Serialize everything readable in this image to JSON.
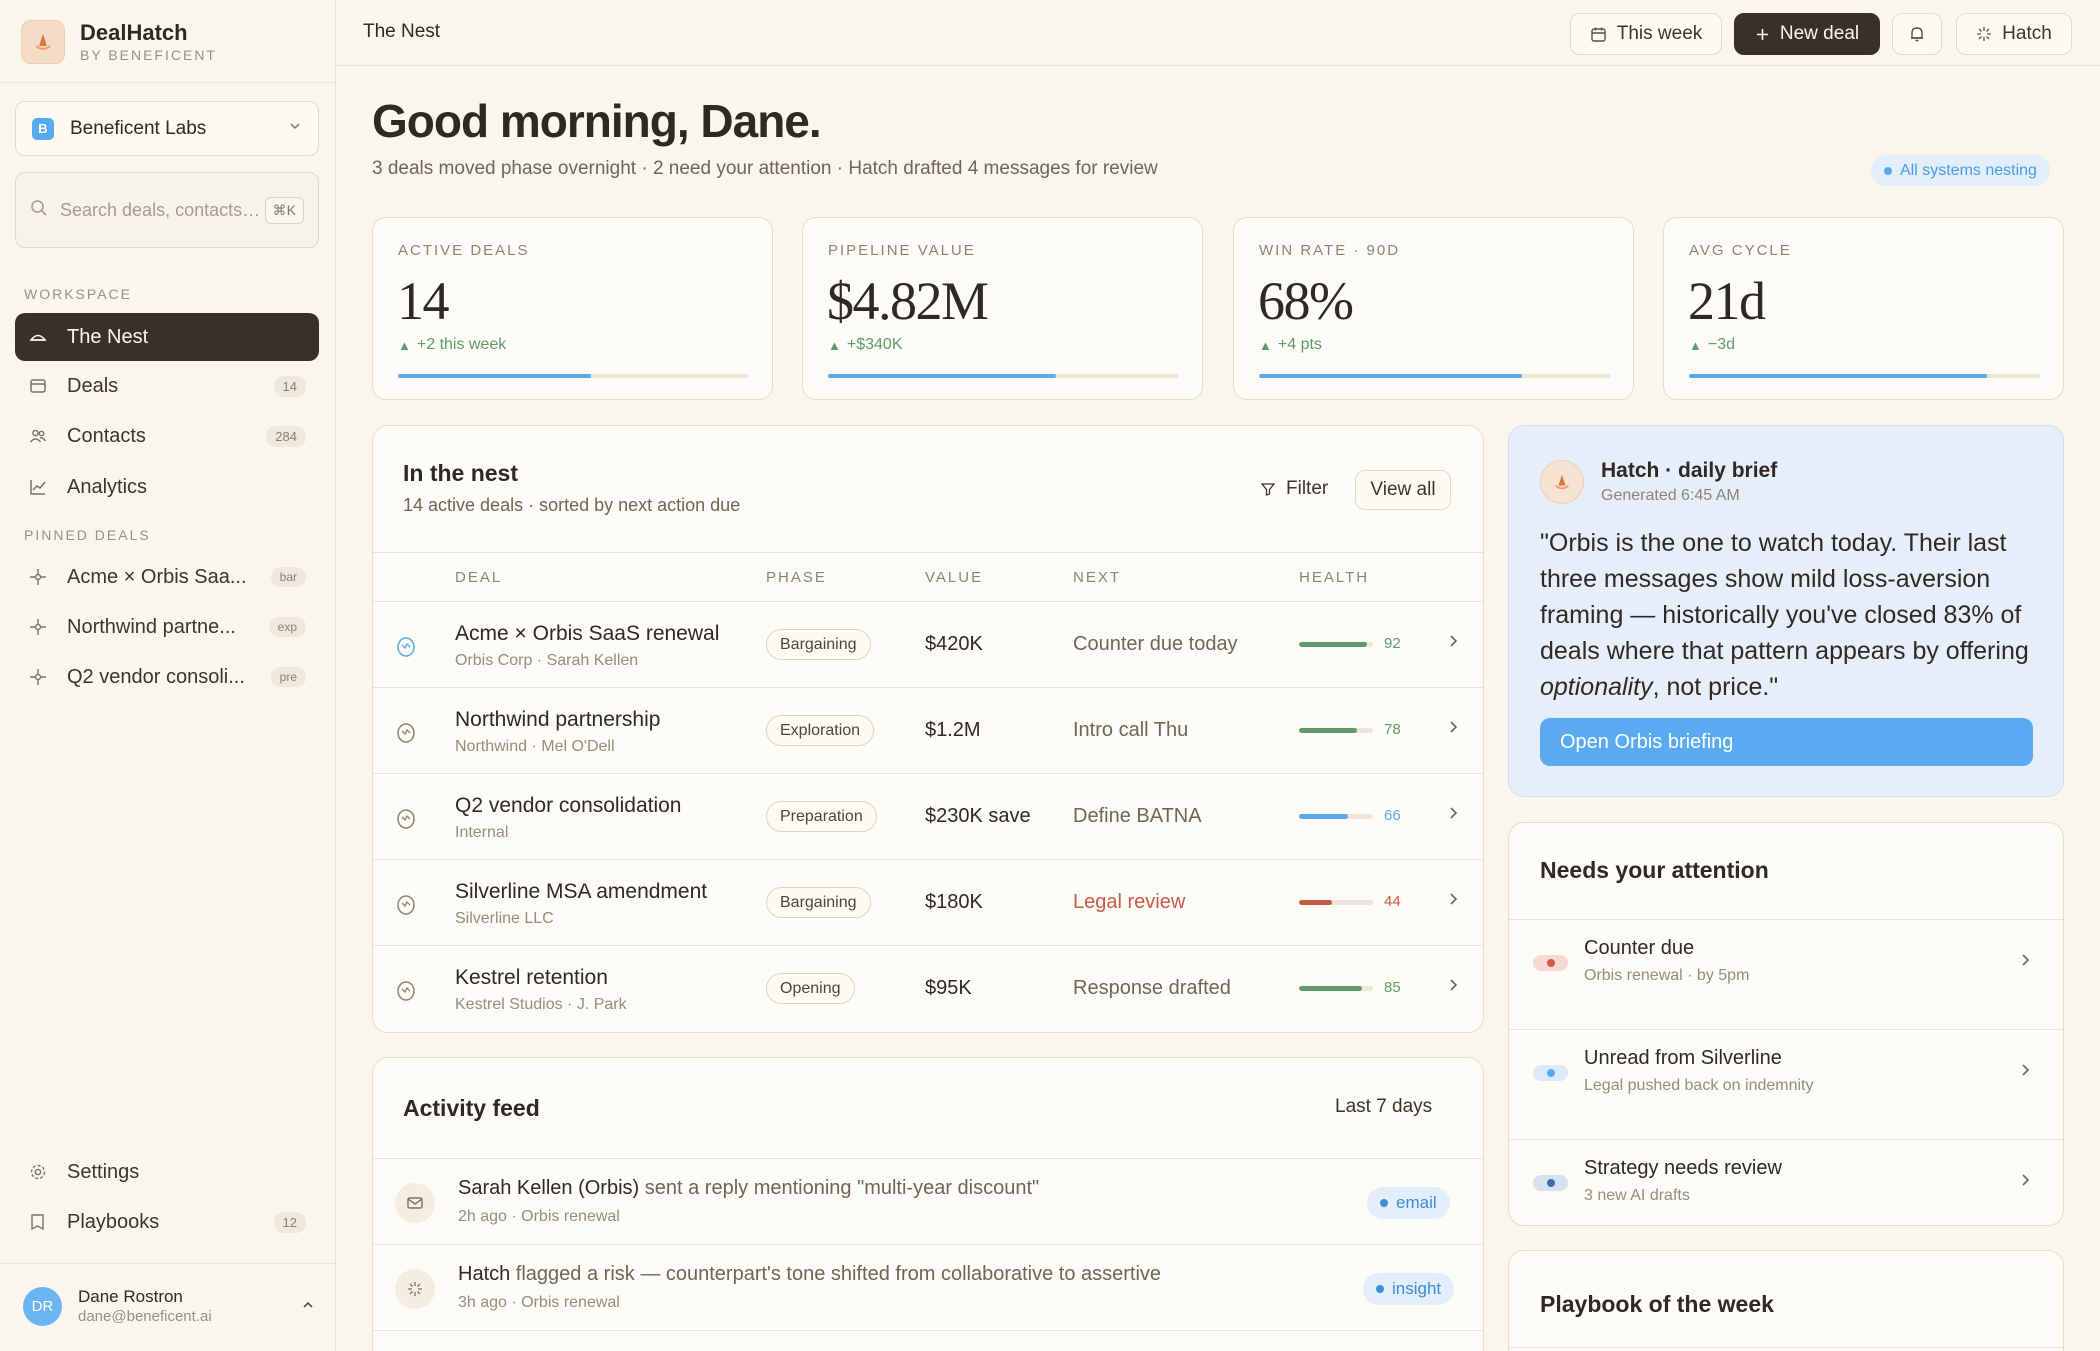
{
  "brand": {
    "name": "DealHatch",
    "sub": "BY BENEFICENT"
  },
  "org": {
    "badge": "B",
    "name": "Beneficent Labs"
  },
  "search": {
    "placeholder": "Search deals, contacts…",
    "shortcut": "⌘K"
  },
  "sidebar": {
    "workspace_label": "WORKSPACE",
    "items": [
      {
        "label": "The Nest",
        "icon": "nest-icon",
        "count": ""
      },
      {
        "label": "Deals",
        "icon": "deals-icon",
        "count": "14"
      },
      {
        "label": "Contacts",
        "icon": "contacts-icon",
        "count": "284"
      },
      {
        "label": "Analytics",
        "icon": "analytics-icon",
        "count": ""
      }
    ],
    "pinned_label": "PINNED DEALS",
    "pinned": [
      {
        "label": "Acme × Orbis Saa...",
        "tag": "bar"
      },
      {
        "label": "Northwind partne...",
        "tag": "exp"
      },
      {
        "label": "Q2 vendor consoli...",
        "tag": "pre"
      }
    ],
    "bottom": [
      {
        "label": "Settings",
        "icon": "gear-icon",
        "count": ""
      },
      {
        "label": "Playbooks",
        "icon": "book-icon",
        "count": "12"
      }
    ]
  },
  "user": {
    "initials": "DR",
    "name": "Dane Rostron",
    "email": "dane@beneficent.ai"
  },
  "topbar": {
    "title": "The Nest",
    "range_label": "This week",
    "new_deal_label": "New deal",
    "hatch_label": "Hatch"
  },
  "greeting": {
    "title": "Good morning, Dane.",
    "subtitle": "3 deals moved phase overnight · 2 need your attention · Hatch drafted 4 messages for review",
    "status": "All systems nesting"
  },
  "kpis": [
    {
      "label": "ACTIVE DEALS",
      "value": "14",
      "delta": "+2 this week",
      "progress": 0.55
    },
    {
      "label": "PIPELINE VALUE",
      "value": "$4.82M",
      "delta": "+$340K",
      "progress": 0.65
    },
    {
      "label": "WIN RATE · 90D",
      "value": "68%",
      "delta": "+4 pts",
      "progress": 0.75
    },
    {
      "label": "AVG CYCLE",
      "value": "21d",
      "delta": "−3d",
      "progress": 0.85
    }
  ],
  "nest": {
    "title": "In the nest",
    "subtitle": "14 active deals · sorted by next action due",
    "filter_label": "Filter",
    "view_all_label": "View all",
    "columns": [
      "DEAL",
      "PHASE",
      "VALUE",
      "NEXT",
      "HEALTH"
    ],
    "rows": [
      {
        "name": "Acme × Orbis SaaS renewal",
        "sub": "Orbis Corp · Sarah Kellen",
        "phase": "Bargaining",
        "value": "$420K",
        "next": "Counter due today",
        "next_warn": false,
        "health": 92,
        "health_color": "#5e9a6b",
        "icon_color": "#58a9f0"
      },
      {
        "name": "Northwind partnership",
        "sub": "Northwind · Mel O'Dell",
        "phase": "Exploration",
        "value": "$1.2M",
        "next": "Intro call Thu",
        "next_warn": false,
        "health": 78,
        "health_color": "#5e9a6b",
        "icon_color": "#8e8377"
      },
      {
        "name": "Q2 vendor consolidation",
        "sub": "Internal",
        "phase": "Preparation",
        "value": "$230K save",
        "next": "Define BATNA",
        "next_warn": false,
        "health": 66,
        "health_color": "#58a9f0",
        "icon_color": "#8e8377"
      },
      {
        "name": "Silverline MSA amendment",
        "sub": "Silverline LLC",
        "phase": "Bargaining",
        "value": "$180K",
        "next": "Legal review",
        "next_warn": true,
        "health": 44,
        "health_color": "#c65a45",
        "icon_color": "#8e8377"
      },
      {
        "name": "Kestrel retention",
        "sub": "Kestrel Studios · J. Park",
        "phase": "Opening",
        "value": "$95K",
        "next": "Response drafted",
        "next_warn": false,
        "health": 85,
        "health_color": "#5e9a6b",
        "icon_color": "#8e8377"
      }
    ]
  },
  "activity": {
    "title": "Activity feed",
    "range": "Last 7 days",
    "items": [
      {
        "actor": "Sarah Kellen (Orbis)",
        "text": " sent a reply mentioning \"multi-year discount\"",
        "sub": "2h ago · Orbis renewal",
        "tag": "email",
        "icon": "mail-icon"
      },
      {
        "actor": "Hatch",
        "text": " flagged a risk — counterpart's tone shifted from collaborative to assertive",
        "sub": "3h ago · Orbis renewal",
        "tag": "insight",
        "icon": "sparkle-icon"
      }
    ]
  },
  "brief": {
    "title": "Hatch · daily brief",
    "generated": "Generated 6:45 AM",
    "quote_a": "\"Orbis is the one to watch today. Their last three messages show mild loss-aversion framing — historically you've closed 83% of deals where that pattern appears by offering ",
    "quote_em": "optionality",
    "quote_b": ", not price.\"",
    "button": "Open Orbis briefing"
  },
  "attention": {
    "title": "Needs your attention",
    "items": [
      {
        "title": "Counter due",
        "sub": "Orbis renewal · by 5pm",
        "color": "#d9574a",
        "bg": "#f5d9d2"
      },
      {
        "title": "Unread from Silverline",
        "sub": "Legal pushed back on indemnity",
        "color": "#58a9f0",
        "bg": "#dbe9f8"
      },
      {
        "title": "Strategy needs review",
        "sub": "3 new AI drafts",
        "color": "#3b6fa8",
        "bg": "#d7e2f0"
      }
    ]
  },
  "playbook": {
    "title": "Playbook of the week"
  },
  "colors": {
    "accent": "#58a9f0",
    "dark": "#3a302a",
    "good": "#5e9a6b",
    "warn": "#c65a45",
    "bg": "#faf6ee"
  }
}
